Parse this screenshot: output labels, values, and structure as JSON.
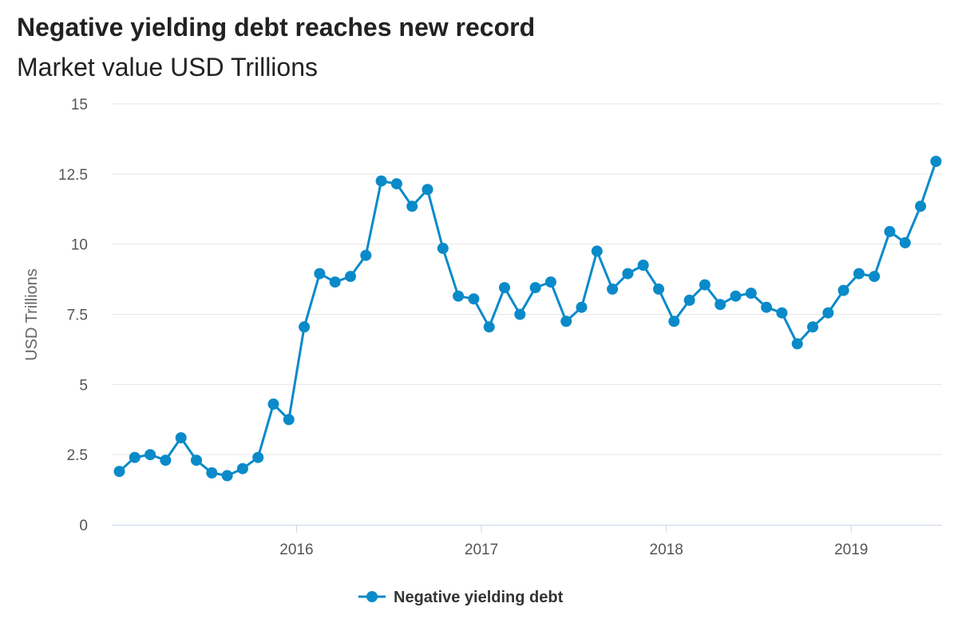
{
  "chart_data": {
    "type": "line",
    "title": "Negative yielding debt reaches new record",
    "subtitle": "Market value USD Trillions",
    "xlabel": "",
    "ylabel": "USD Trillions",
    "x_ticks": [
      "2016",
      "2017",
      "2018",
      "2019"
    ],
    "y_ticks": [
      "0",
      "2.5",
      "5",
      "7.5",
      "10",
      "12.5",
      "15"
    ],
    "ylim": [
      0,
      15
    ],
    "grid": true,
    "legend_position": "bottom-center",
    "colors": {
      "series": "#0A8AC9",
      "grid": "#e6e6e6",
      "axis": "#ccd6eb"
    },
    "x": [
      "2015-01",
      "2015-02",
      "2015-03",
      "2015-04",
      "2015-05",
      "2015-06",
      "2015-07",
      "2015-08",
      "2015-09",
      "2015-10",
      "2015-11",
      "2015-12",
      "2016-01",
      "2016-02",
      "2016-03",
      "2016-04",
      "2016-05",
      "2016-06",
      "2016-07",
      "2016-08",
      "2016-09",
      "2016-10",
      "2016-11",
      "2016-12",
      "2017-01",
      "2017-02",
      "2017-03",
      "2017-04",
      "2017-05",
      "2017-06",
      "2017-07",
      "2017-08",
      "2017-09",
      "2017-10",
      "2017-11",
      "2017-12",
      "2018-01",
      "2018-02",
      "2018-03",
      "2018-04",
      "2018-05",
      "2018-06",
      "2018-07",
      "2018-08",
      "2018-09",
      "2018-10",
      "2018-11",
      "2018-12",
      "2019-01",
      "2019-02",
      "2019-03",
      "2019-04",
      "2019-05",
      "2019-06"
    ],
    "series": [
      {
        "name": "Negative yielding debt",
        "values": [
          1.9,
          2.4,
          2.5,
          2.3,
          3.1,
          2.3,
          1.85,
          1.75,
          2.0,
          2.4,
          4.3,
          3.75,
          7.05,
          8.95,
          8.65,
          8.85,
          9.6,
          12.25,
          12.15,
          11.35,
          11.95,
          9.85,
          8.15,
          8.05,
          7.05,
          8.45,
          7.5,
          8.45,
          8.65,
          7.25,
          7.75,
          9.75,
          8.4,
          8.95,
          9.25,
          8.4,
          7.25,
          8.0,
          8.55,
          7.85,
          8.15,
          8.25,
          7.75,
          7.55,
          6.45,
          7.05,
          7.55,
          8.35,
          8.95,
          8.85,
          10.45,
          10.05,
          11.35,
          12.95
        ]
      }
    ]
  }
}
